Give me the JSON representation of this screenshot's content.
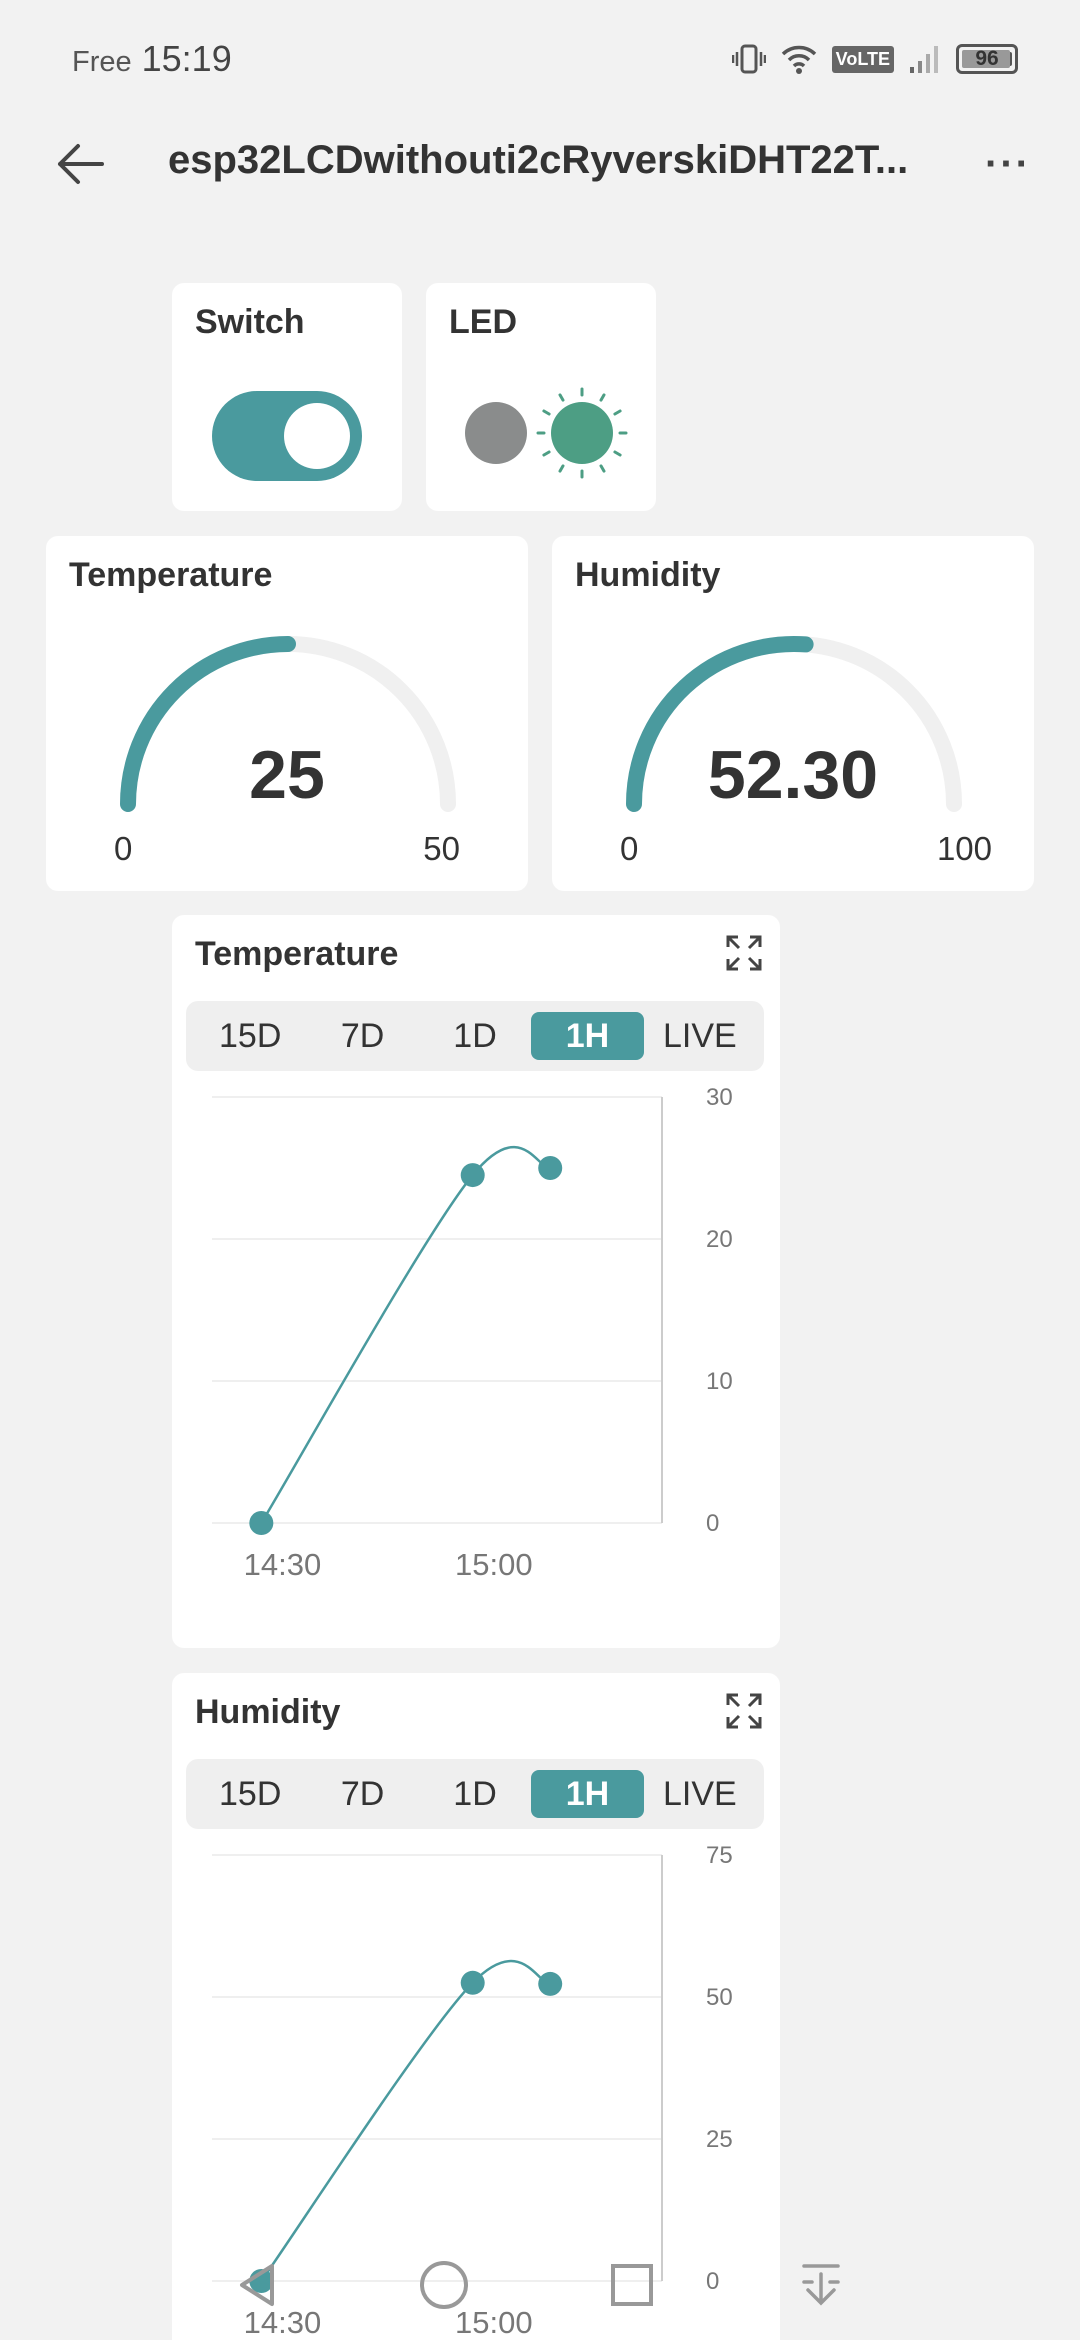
{
  "status_bar": {
    "carrier": "Free",
    "time": "15:19",
    "network": "VoLTE",
    "battery": "96",
    "battery_fraction": 0.96
  },
  "app_bar": {
    "title": "esp32LCDwithouti2cRyverskiDHT22T...",
    "back_icon": "arrow-left-icon",
    "more_icon": "more-horizontal-icon",
    "more_label": "···"
  },
  "widgets": {
    "switch": {
      "title": "Switch",
      "state": "on"
    },
    "led": {
      "title": "LED",
      "state": "on",
      "off_color": "#8a8c8c",
      "on_color": "#4d9e84"
    },
    "temperature_gauge": {
      "title": "Temperature",
      "value": "25",
      "min": "0",
      "max": "50",
      "numeric_value": 25,
      "numeric_min": 0,
      "numeric_max": 50
    },
    "humidity_gauge": {
      "title": "Humidity",
      "value": "52.30",
      "min": "0",
      "max": "100",
      "numeric_value": 52.3,
      "numeric_min": 0,
      "numeric_max": 100
    }
  },
  "chart_cards": [
    {
      "title": "Temperature",
      "tabs": [
        "15D",
        "7D",
        "1D",
        "1H",
        "LIVE"
      ],
      "active_tab": "1H"
    },
    {
      "title": "Humidity",
      "tabs": [
        "15D",
        "7D",
        "1D",
        "1H",
        "LIVE"
      ],
      "active_tab": "1H"
    }
  ],
  "chart_data": [
    {
      "type": "line",
      "title": "Temperature",
      "x": [
        "14:27",
        "14:57",
        "15:08"
      ],
      "x_ticks": [
        "14:30",
        "15:00"
      ],
      "values": [
        0,
        24.5,
        25
      ],
      "y_ticks": [
        "0",
        "10",
        "20",
        "30"
      ],
      "ylim": [
        0,
        30
      ],
      "y_axis_position": "right",
      "grid": true
    },
    {
      "type": "line",
      "title": "Humidity",
      "x": [
        "14:27",
        "14:57",
        "15:08"
      ],
      "x_ticks": [
        "14:30",
        "15:00"
      ],
      "values": [
        0,
        52.5,
        52.3
      ],
      "y_ticks": [
        "0",
        "25",
        "50",
        "75"
      ],
      "ylim": [
        0,
        75
      ],
      "y_axis_position": "right",
      "grid": true
    }
  ],
  "colors": {
    "accent": "#4a9a9e",
    "background": "#f2f2f2",
    "card": "#ffffff",
    "gauge_track": "#f0f0f0"
  },
  "nav_bar": {
    "back_icon": "triangle-back-icon",
    "home_icon": "circle-home-icon",
    "recents_icon": "square-recents-icon",
    "extra_icon": "download-arrow-icon"
  }
}
